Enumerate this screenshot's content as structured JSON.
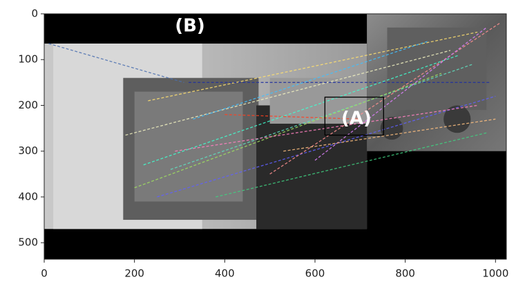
{
  "chart_data": {
    "type": "image",
    "annotations": [
      "(A)",
      "(B)"
    ],
    "xlim": [
      0,
      1024
    ],
    "ylim": [
      536,
      0
    ],
    "xticks": [
      0,
      200,
      400,
      600,
      800,
      1000
    ],
    "yticks": [
      0,
      100,
      200,
      300,
      400,
      500
    ]
  }
}
